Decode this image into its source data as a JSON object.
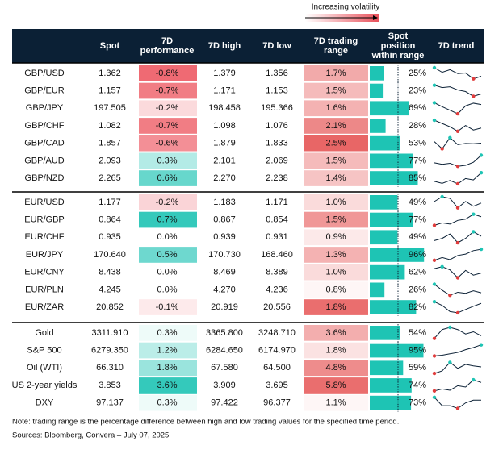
{
  "legend_note": "Increasing volatility",
  "header": {
    "columns": [
      [
        "Spot"
      ],
      [
        "7D",
        "performance"
      ],
      [
        "7D high"
      ],
      [
        "7D low"
      ],
      [
        "7D trading",
        "range"
      ],
      [
        "Spot",
        "position",
        "within range"
      ],
      [
        "7D trend"
      ]
    ]
  },
  "groups": [
    {
      "rows": [
        {
          "label": "GBP/USD",
          "spot": "1.362",
          "perf": "-0.8%",
          "high": "1.379",
          "low": "1.356",
          "range": "1.7%",
          "position": "25%",
          "trend": [
            1.375,
            1.368,
            1.372,
            1.366,
            1.367,
            1.358,
            1.362
          ]
        },
        {
          "label": "GBP/EUR",
          "spot": "1.157",
          "perf": "-0.7%",
          "high": "1.171",
          "low": "1.153",
          "range": "1.5%",
          "position": "23%",
          "trend": [
            1.168,
            1.165,
            1.166,
            1.162,
            1.16,
            1.154,
            1.157
          ]
        },
        {
          "label": "GBP/JPY",
          "spot": "197.505",
          "perf": "-0.2%",
          "high": "198.458",
          "low": "195.366",
          "range": "1.6%",
          "position": "69%",
          "trend": [
            197.9,
            197.0,
            196.2,
            195.4,
            197.2,
            197.8,
            197.5
          ]
        },
        {
          "label": "GBP/CHF",
          "spot": "1.082",
          "perf": "-0.7%",
          "high": "1.098",
          "low": "1.076",
          "range": "2.1%",
          "position": "28%",
          "trend": [
            1.094,
            1.089,
            1.084,
            1.077,
            1.086,
            1.079,
            1.082
          ]
        },
        {
          "label": "GBP/CAD",
          "spot": "1.857",
          "perf": "-0.6%",
          "high": "1.879",
          "low": "1.833",
          "range": "2.5%",
          "position": "53%",
          "trend": [
            1.862,
            1.838,
            1.875,
            1.852,
            1.856,
            1.855,
            1.857
          ]
        },
        {
          "label": "GBP/AUD",
          "spot": "2.093",
          "perf": "0.3%",
          "high": "2.101",
          "low": "2.069",
          "range": "1.5%",
          "position": "77%",
          "trend": [
            2.083,
            2.08,
            2.082,
            2.076,
            2.078,
            2.084,
            2.098
          ]
        },
        {
          "label": "GBP/NZD",
          "spot": "2.265",
          "perf": "0.6%",
          "high": "2.270",
          "low": "2.238",
          "range": "1.4%",
          "position": "85%",
          "trend": [
            2.25,
            2.246,
            2.252,
            2.245,
            2.256,
            2.253,
            2.268
          ]
        }
      ]
    },
    {
      "rows": [
        {
          "label": "EUR/USD",
          "spot": "1.177",
          "perf": "-0.2%",
          "high": "1.183",
          "low": "1.171",
          "range": "1.0%",
          "position": "49%",
          "trend": [
            1.178,
            1.181,
            1.18,
            1.174,
            1.178,
            1.175,
            1.177
          ]
        },
        {
          "label": "EUR/GBP",
          "spot": "0.864",
          "perf": "0.7%",
          "high": "0.867",
          "low": "0.854",
          "range": "1.5%",
          "position": "77%",
          "trend": [
            0.857,
            0.859,
            0.858,
            0.861,
            0.862,
            0.866,
            0.864
          ]
        },
        {
          "label": "EUR/CHF",
          "spot": "0.935",
          "perf": "0.0%",
          "high": "0.939",
          "low": "0.931",
          "range": "0.9%",
          "position": "49%",
          "trend": [
            0.933,
            0.934,
            0.936,
            0.932,
            0.934,
            0.937,
            0.935
          ]
        },
        {
          "label": "EUR/JPY",
          "spot": "170.640",
          "perf": "0.5%",
          "high": "170.730",
          "low": "168.460",
          "range": "1.3%",
          "position": "96%",
          "trend": [
            169.0,
            169.4,
            169.1,
            169.7,
            169.9,
            170.4,
            170.6
          ]
        },
        {
          "label": "EUR/CNY",
          "spot": "8.438",
          "perf": "0.0%",
          "high": "8.469",
          "low": "8.389",
          "range": "1.0%",
          "position": "62%",
          "trend": [
            8.455,
            8.462,
            8.45,
            8.42,
            8.448,
            8.43,
            8.438
          ]
        },
        {
          "label": "EUR/PLN",
          "spot": "4.245",
          "perf": "0.0%",
          "high": "4.270",
          "low": "4.236",
          "range": "0.8%",
          "position": "26%",
          "trend": [
            4.262,
            4.25,
            4.24,
            4.246,
            4.244,
            4.249,
            4.245
          ]
        },
        {
          "label": "EUR/ZAR",
          "spot": "20.852",
          "perf": "-0.1%",
          "high": "20.919",
          "low": "20.556",
          "range": "1.8%",
          "position": "82%",
          "trend": [
            20.89,
            20.8,
            20.65,
            20.62,
            20.7,
            20.78,
            20.85
          ]
        }
      ]
    },
    {
      "rows": [
        {
          "label": "Gold",
          "spot": "3311.910",
          "perf": "0.3%",
          "high": "3365.800",
          "low": "3248.710",
          "range": "3.6%",
          "position": "54%",
          "trend": [
            3300,
            3340,
            3350,
            3340,
            3320,
            3330,
            3312
          ]
        },
        {
          "label": "S&P 500",
          "spot": "6279.350",
          "perf": "1.2%",
          "high": "6284.650",
          "low": "6174.970",
          "range": "1.8%",
          "position": "95%",
          "trend": [
            6200,
            6205,
            6215,
            6225,
            6245,
            6260,
            6279
          ]
        },
        {
          "label": "Oil (WTI)",
          "spot": "66.310",
          "perf": "1.8%",
          "high": "67.580",
          "low": "64.500",
          "range": "4.8%",
          "position": "59%",
          "trend": [
            65.0,
            65.5,
            67.2,
            66.0,
            66.8,
            66.5,
            66.3
          ]
        },
        {
          "label": "US 2-year yields",
          "spot": "3.853",
          "perf": "3.6%",
          "high": "3.909",
          "low": "3.695",
          "range": "5.8%",
          "position": "74%",
          "trend": [
            3.72,
            3.75,
            3.73,
            3.8,
            3.78,
            3.89,
            3.85
          ]
        },
        {
          "label": "DXY",
          "spot": "97.137",
          "perf": "0.3%",
          "high": "97.422",
          "low": "96.377",
          "range": "1.1%",
          "position": "73%",
          "trend": [
            97.2,
            96.9,
            96.9,
            96.8,
            97.0,
            97.1,
            97.1
          ]
        }
      ]
    }
  ],
  "footer": {
    "note": "Note: trading range is the percentage difference between high and low trading values for the specified time period.",
    "sources": "Sources: Bloomberg, Convera – July 07, 2025"
  }
}
